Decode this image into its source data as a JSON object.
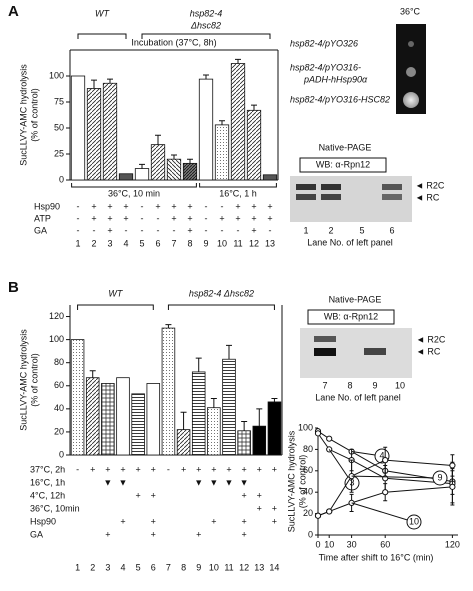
{
  "panel_labels": [
    "A",
    "B"
  ],
  "chart_data": [
    {
      "type": "bar",
      "y_label": [
        "SucLLVY-AMC hydrolysis",
        "(% of control)"
      ],
      "groups": [
        [
          "WT"
        ],
        [
          "hsp82-4",
          "Δhsc82"
        ]
      ],
      "incubation": "Incubation (37°C, 8h)",
      "conditions": [
        "36°C, 10 min",
        "16°C, 1 h"
      ],
      "categories": [
        "1",
        "2",
        "3",
        "4",
        "5",
        "6",
        "7",
        "8",
        "9",
        "10",
        "11",
        "12",
        "13"
      ],
      "values": [
        100,
        88,
        93,
        6,
        11,
        34,
        20,
        16,
        97,
        53,
        112,
        67,
        5
      ],
      "errors": [
        null,
        8,
        4,
        null,
        4,
        9,
        4,
        4,
        4,
        4,
        4,
        5,
        null
      ],
      "patterns": [
        "white",
        "diag",
        "diag",
        "dark",
        "white",
        "diag",
        "diagback",
        "darkdiag",
        "white",
        "dots",
        "diag",
        "diag",
        "dark"
      ],
      "ylim": [
        0,
        125
      ],
      "yticks": [
        0,
        25,
        50,
        75,
        100
      ],
      "rows": [
        {
          "name": "Hsp90",
          "marks": [
            "-",
            "+",
            "+",
            "+",
            "-",
            "+",
            "+",
            "+",
            "-",
            "-",
            "+",
            "+",
            "+"
          ]
        },
        {
          "name": "ATP",
          "marks": [
            "-",
            "+",
            "+",
            "+",
            "-",
            "-",
            "+",
            "+",
            "-",
            "+",
            "+",
            "+",
            "+"
          ]
        },
        {
          "name": "GA",
          "marks": [
            "-",
            "-",
            "+",
            "-",
            "-",
            "-",
            "-",
            "+",
            "-",
            "-",
            "-",
            "+",
            "-"
          ]
        }
      ]
    },
    {
      "type": "bar",
      "y_label": [
        "SucLLVY-AMC hydrolysis",
        "(% of control)"
      ],
      "groups": [
        [
          "WT"
        ],
        [
          "hsp82-4  Δhsc82"
        ]
      ],
      "categories": [
        "1",
        "2",
        "3",
        "4",
        "5",
        "6",
        "7",
        "8",
        "9",
        "10",
        "11",
        "12",
        "13",
        "14"
      ],
      "values": [
        100,
        67,
        62,
        67,
        53,
        62,
        110,
        22,
        72,
        41,
        83,
        21,
        25,
        46
      ],
      "errors": [
        null,
        6,
        null,
        null,
        null,
        null,
        3,
        15,
        12,
        8,
        12,
        8,
        15,
        3
      ],
      "patterns": [
        "dots",
        "diag",
        "grid",
        "white",
        "hlines",
        "white",
        "dots",
        "diag",
        "hlines",
        "dots",
        "hlines",
        "grid",
        "black",
        "black"
      ],
      "ylim": [
        0,
        130
      ],
      "yticks": [
        0,
        20,
        40,
        60,
        80,
        100,
        120
      ],
      "rows": [
        {
          "name": "37°C, 2h",
          "marks": [
            "-",
            "+",
            "+",
            "+",
            "+",
            "+",
            "-",
            "+",
            "+",
            "+",
            "+",
            "+",
            "+",
            "+"
          ]
        },
        {
          "name": "16°C, 1h",
          "marks": [
            null,
            null,
            "▼",
            "▼",
            null,
            null,
            null,
            null,
            "▼",
            "▼",
            "▼",
            "▼",
            null,
            null
          ]
        },
        {
          "name": "4°C, 12h",
          "marks": [
            null,
            null,
            null,
            null,
            "+",
            "+",
            null,
            null,
            null,
            null,
            null,
            "+",
            "+",
            null
          ]
        },
        {
          "name": "36°C, 10min",
          "marks": [
            null,
            null,
            null,
            null,
            null,
            null,
            null,
            null,
            null,
            null,
            null,
            null,
            "+",
            "+"
          ]
        },
        {
          "name": "Hsp90",
          "marks": [
            null,
            null,
            null,
            "+",
            null,
            "+",
            null,
            null,
            null,
            "+",
            null,
            "+",
            null,
            "+"
          ]
        },
        {
          "name": "GA",
          "marks": [
            null,
            null,
            "+",
            null,
            null,
            "+",
            null,
            null,
            "+",
            null,
            null,
            "+",
            null,
            null
          ]
        }
      ]
    },
    {
      "type": "line",
      "y_label": [
        "SucLLVY-AMC hydrolysis",
        "(% of control)"
      ],
      "x_label": "Time after shift to 16°C (min)",
      "x": [
        0,
        10,
        30,
        60,
        120
      ],
      "xlim": [
        0,
        125
      ],
      "xticks": [
        0,
        10,
        30,
        60,
        120
      ],
      "ylim": [
        0,
        100
      ],
      "yticks": [
        0,
        20,
        40,
        60,
        80,
        100
      ],
      "series": [
        {
          "name": "4",
          "values": [
            97,
            90,
            78,
            60,
            50
          ],
          "errors": [
            null,
            null,
            null,
            8,
            12
          ]
        },
        {
          "name": "3",
          "values": [
            95,
            80,
            70,
            53,
            48
          ],
          "errors": [
            null,
            null,
            10,
            12,
            20
          ]
        },
        {
          "name": "9",
          "values": [
            18,
            22,
            55,
            70,
            65
          ],
          "errors": [
            null,
            null,
            15,
            12,
            10
          ]
        },
        {
          "name": "10",
          "values": [
            18,
            22,
            30,
            40,
            45
          ],
          "errors": [
            null,
            null,
            8,
            8,
            15
          ]
        }
      ]
    }
  ],
  "growth": {
    "temperature": "36°C",
    "strains": [
      "hsp82-4/pYO326",
      [
        "hsp82-4/pYO316-",
        "pADH-hHsp90α"
      ],
      "hsp82-4/pYO316-HSC82"
    ]
  },
  "gel_a": {
    "title": "Native-PAGE",
    "antibody": "WB: α-Rpn12",
    "bands": [
      "◄ R2C",
      "◄ RC"
    ],
    "lanes": [
      "1",
      "2",
      "5",
      "6"
    ],
    "caption": "Lane No. of left panel"
  },
  "gel_b": {
    "title": "Native-PAGE",
    "antibody": "WB: α-Rpn12",
    "bands": [
      "◄ R2C",
      "◄ RC"
    ],
    "lanes": [
      "7",
      "8",
      "9",
      "10"
    ],
    "caption": "Lane No. of left panel"
  }
}
